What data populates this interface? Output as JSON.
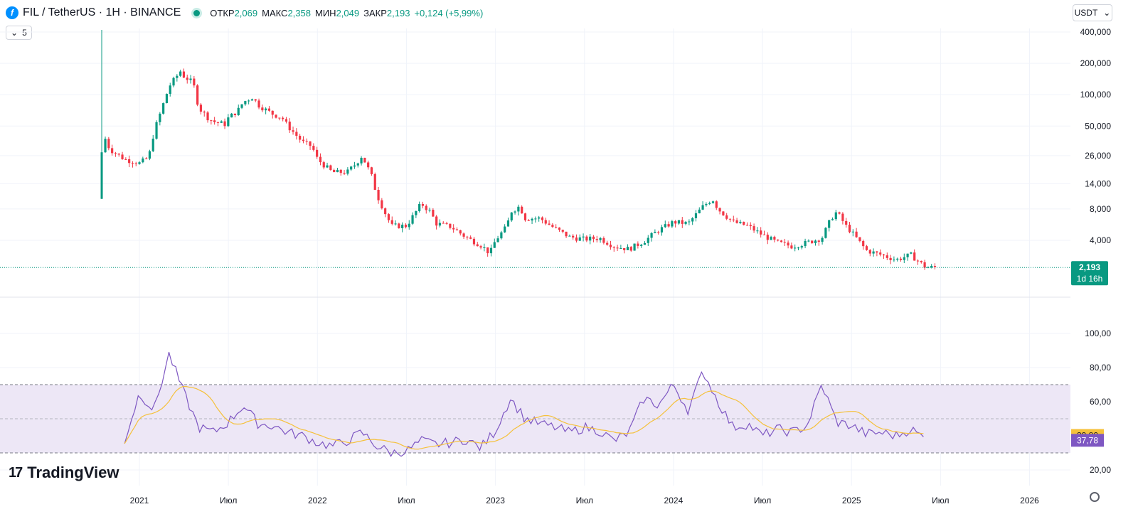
{
  "header": {
    "title": "FIL / TetherUS · 1H · BINANCE",
    "open_label": "ОТКР",
    "open_value": "2,069",
    "high_label": "МАКС",
    "high_value": "2,358",
    "low_label": "МИН",
    "low_value": "2,049",
    "close_label": "ЗАКР",
    "close_value": "2,193",
    "change": "+0,124 (+5,99%)"
  },
  "indicator_toggle": {
    "count": "5"
  },
  "currency": {
    "label": "USDT"
  },
  "logo": {
    "text": "TradingView"
  },
  "colors": {
    "up": "#089981",
    "down": "#f23645",
    "rsi": "#7e57c2",
    "rsi_ma": "#f5c13b",
    "band": "#ede7f6"
  },
  "chart_data": [
    {
      "type": "candlestick",
      "scale": "log",
      "price_ticks": [
        "400,000",
        "200,000",
        "100,000",
        "50,000",
        "26,000",
        "14,000",
        "8,000",
        "4,000"
      ],
      "price_tick_values": [
        400,
        200,
        100,
        50,
        26,
        14,
        8,
        4
      ],
      "last_price_label": "2,193",
      "countdown_label": "1d 16h",
      "time_ticks": [
        "2021",
        "Июл",
        "2022",
        "Июл",
        "2023",
        "Июл",
        "2024",
        "Июл",
        "2025",
        "Июл",
        "2026"
      ],
      "time_tick_dates": [
        "2021-01",
        "2021-07",
        "2022-01",
        "2022-07",
        "2023-01",
        "2023-07",
        "2024-01",
        "2024-07",
        "2025-01",
        "2025-07",
        "2026-01"
      ],
      "start_date": "2020-10",
      "end_date": "2025-06",
      "last_price": 2.193,
      "anchors": [
        [
          "2020-10-15",
          10.5
        ],
        [
          "2020-10-20",
          40
        ],
        [
          "2020-11",
          30
        ],
        [
          "2020-12",
          24
        ],
        [
          "2021-01",
          22
        ],
        [
          "2021-01-20",
          25
        ],
        [
          "2021-02",
          45
        ],
        [
          "2021-02-15",
          70
        ],
        [
          "2021-03",
          120
        ],
        [
          "2021-03-25",
          170
        ],
        [
          "2021-04",
          150
        ],
        [
          "2021-04-20",
          130
        ],
        [
          "2021-05",
          75
        ],
        [
          "2021-05-20",
          60
        ],
        [
          "2021-06",
          55
        ],
        [
          "2021-06-25",
          52
        ],
        [
          "2021-07",
          60
        ],
        [
          "2021-07-20",
          70
        ],
        [
          "2021-08",
          85
        ],
        [
          "2021-08-20",
          95
        ],
        [
          "2021-09",
          80
        ],
        [
          "2021-09-20",
          70
        ],
        [
          "2021-10",
          65
        ],
        [
          "2021-10-20",
          60
        ],
        [
          "2021-11",
          50
        ],
        [
          "2021-11-20",
          40
        ],
        [
          "2021-12",
          35
        ],
        [
          "2021-12-20",
          32
        ],
        [
          "2022-01",
          24
        ],
        [
          "2022-01-20",
          20
        ],
        [
          "2022-02",
          18
        ],
        [
          "2022-03",
          18
        ],
        [
          "2022-03-20",
          22
        ],
        [
          "2022-04",
          26
        ],
        [
          "2022-04-20",
          17
        ],
        [
          "2022-05",
          11
        ],
        [
          "2022-05-20",
          7
        ],
        [
          "2022-06",
          5.5
        ],
        [
          "2022-07",
          5.5
        ],
        [
          "2022-08",
          9
        ],
        [
          "2022-08-20",
          7.5
        ],
        [
          "2022-09",
          5.8
        ],
        [
          "2022-10",
          5.4
        ],
        [
          "2022-11",
          4.3
        ],
        [
          "2022-12",
          3.6
        ],
        [
          "2022-12-20",
          3.0
        ],
        [
          "2023-01",
          4.0
        ],
        [
          "2023-01-25",
          5.5
        ],
        [
          "2023-02",
          7.5
        ],
        [
          "2023-02-20",
          8.5
        ],
        [
          "2023-03",
          6.5
        ],
        [
          "2023-04",
          6.5
        ],
        [
          "2023-05",
          5.2
        ],
        [
          "2023-06",
          4.3
        ],
        [
          "2023-07",
          4.1
        ],
        [
          "2023-08",
          4.2
        ],
        [
          "2023-09",
          3.5
        ],
        [
          "2023-10",
          3.3
        ],
        [
          "2023-11",
          3.9
        ],
        [
          "2023-12",
          5.0
        ],
        [
          "2024-01",
          6.0
        ],
        [
          "2024-02",
          5.8
        ],
        [
          "2024-03",
          8.5
        ],
        [
          "2024-03-20",
          10
        ],
        [
          "2024-04",
          8.0
        ],
        [
          "2024-05",
          6.0
        ],
        [
          "2024-06",
          5.5
        ],
        [
          "2024-07",
          4.5
        ],
        [
          "2024-08",
          3.8
        ],
        [
          "2024-09",
          3.5
        ],
        [
          "2024-10",
          3.8
        ],
        [
          "2024-11",
          4.2
        ],
        [
          "2024-11-20",
          6.5
        ],
        [
          "2024-12",
          7.5
        ],
        [
          "2024-12-20",
          5.5
        ],
        [
          "2025-01",
          4.8
        ],
        [
          "2025-02",
          3.2
        ],
        [
          "2025-03",
          2.9
        ],
        [
          "2025-04",
          2.6
        ],
        [
          "2025-05",
          2.9
        ],
        [
          "2025-06",
          2.2
        ]
      ]
    },
    {
      "type": "line",
      "name": "RSI",
      "y_ticks": [
        "100,00",
        "80,00",
        "60,00",
        "20,00"
      ],
      "y_tick_values": [
        100,
        80,
        60,
        20
      ],
      "band": [
        30,
        70
      ],
      "midline": 50,
      "rsi_label": "37,78",
      "ma_label": "39,80",
      "rsi_last": 37.78,
      "ma_last": 39.8,
      "anchors": [
        [
          "2020-12",
          37
        ],
        [
          "2021-01",
          65
        ],
        [
          "2021-02",
          55
        ],
        [
          "2021-03",
          88
        ],
        [
          "2021-04",
          65
        ],
        [
          "2021-05",
          45
        ],
        [
          "2021-06",
          42
        ],
        [
          "2021-07",
          48
        ],
        [
          "2021-08",
          58
        ],
        [
          "2021-09",
          47
        ],
        [
          "2021-10",
          46
        ],
        [
          "2021-11",
          42
        ],
        [
          "2021-12",
          40
        ],
        [
          "2022-01",
          36
        ],
        [
          "2022-02",
          34
        ],
        [
          "2022-03",
          37
        ],
        [
          "2022-04",
          42
        ],
        [
          "2022-05",
          34
        ],
        [
          "2022-06",
          30
        ],
        [
          "2022-07",
          31
        ],
        [
          "2022-08",
          37
        ],
        [
          "2022-09",
          35
        ],
        [
          "2022-10",
          36
        ],
        [
          "2022-11",
          38
        ],
        [
          "2022-12",
          33
        ],
        [
          "2023-01",
          43
        ],
        [
          "2023-02",
          62
        ],
        [
          "2023-03",
          50
        ],
        [
          "2023-04",
          47
        ],
        [
          "2023-05",
          45
        ],
        [
          "2023-06",
          42
        ],
        [
          "2023-07",
          45
        ],
        [
          "2023-08",
          43
        ],
        [
          "2023-09",
          37
        ],
        [
          "2023-10",
          42
        ],
        [
          "2023-11",
          62
        ],
        [
          "2023-12",
          58
        ],
        [
          "2024-01",
          70
        ],
        [
          "2024-02",
          55
        ],
        [
          "2024-03",
          78
        ],
        [
          "2024-04",
          60
        ],
        [
          "2024-05",
          45
        ],
        [
          "2024-06",
          47
        ],
        [
          "2024-07",
          40
        ],
        [
          "2024-08",
          44
        ],
        [
          "2024-09",
          42
        ],
        [
          "2024-10",
          46
        ],
        [
          "2024-11",
          70
        ],
        [
          "2024-12",
          48
        ],
        [
          "2025-01",
          46
        ],
        [
          "2025-02",
          41
        ],
        [
          "2025-03",
          42
        ],
        [
          "2025-04",
          40
        ],
        [
          "2025-05",
          44
        ],
        [
          "2025-06",
          38
        ]
      ]
    }
  ]
}
